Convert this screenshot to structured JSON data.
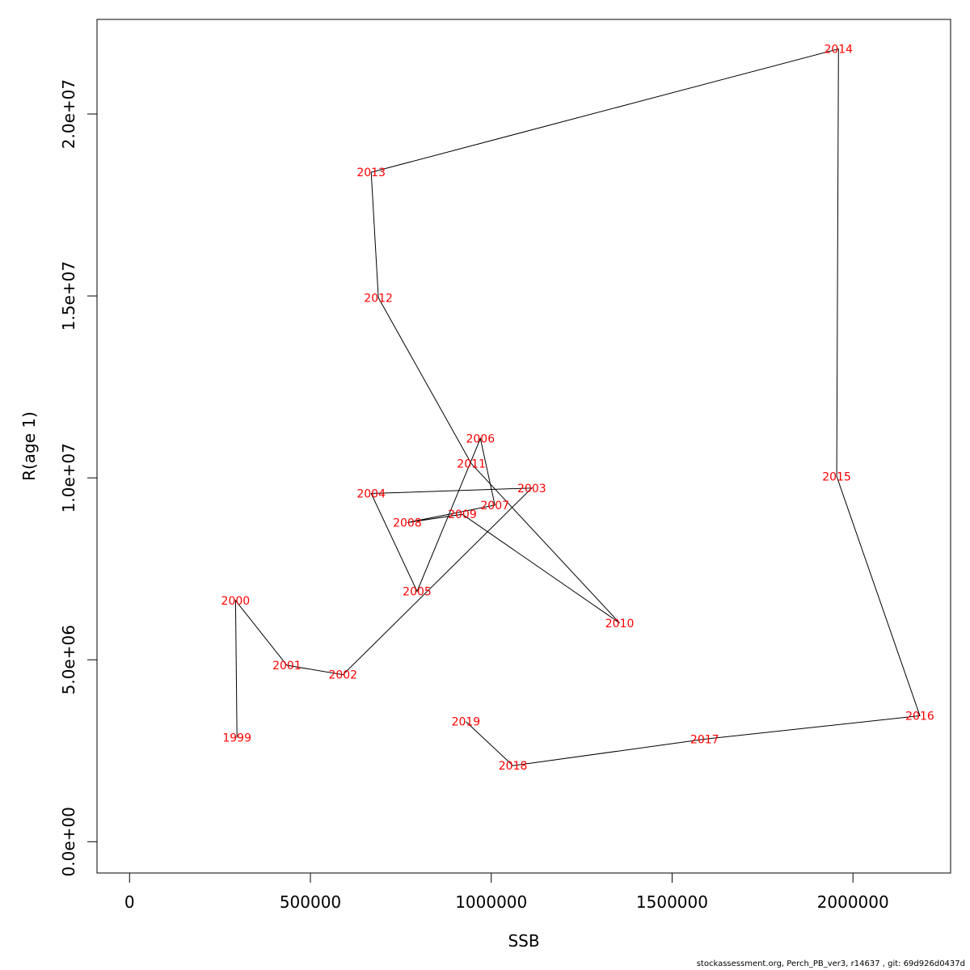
{
  "chart_data": {
    "type": "line",
    "xlabel": "SSB",
    "ylabel": "R(age 1)",
    "xlim": [
      -90000,
      2270000
    ],
    "ylim": [
      -860000,
      22600000
    ],
    "xticks": [
      0,
      500000,
      1000000,
      1500000,
      2000000
    ],
    "xtick_labels": [
      "0",
      "500000",
      "1000000",
      "1500000",
      "2000000"
    ],
    "yticks": [
      0,
      5000000,
      10000000,
      15000000,
      20000000
    ],
    "ytick_labels": [
      "0.0e+00",
      "5.0e+06",
      "1.0e+07",
      "1.5e+07",
      "2.0e+07"
    ],
    "grid": false,
    "line_color": "#000000",
    "label_color": "#ff0000",
    "points": [
      {
        "year": "1999",
        "x": 297000,
        "y": 2860000
      },
      {
        "year": "2000",
        "x": 293000,
        "y": 6630000
      },
      {
        "year": "2001",
        "x": 435000,
        "y": 4850000
      },
      {
        "year": "2002",
        "x": 590000,
        "y": 4590000
      },
      {
        "year": "2003",
        "x": 1112000,
        "y": 9720000
      },
      {
        "year": "2004",
        "x": 668000,
        "y": 9570000
      },
      {
        "year": "2005",
        "x": 795000,
        "y": 6880000
      },
      {
        "year": "2006",
        "x": 970000,
        "y": 11080000
      },
      {
        "year": "2007",
        "x": 1010000,
        "y": 9250000
      },
      {
        "year": "2008",
        "x": 768000,
        "y": 8770000
      },
      {
        "year": "2009",
        "x": 920000,
        "y": 9000000
      },
      {
        "year": "2010",
        "x": 1355000,
        "y": 6010000
      },
      {
        "year": "2011",
        "x": 945000,
        "y": 10390000
      },
      {
        "year": "2012",
        "x": 688000,
        "y": 14950000
      },
      {
        "year": "2013",
        "x": 668000,
        "y": 18400000
      },
      {
        "year": "2014",
        "x": 1960000,
        "y": 21790000
      },
      {
        "year": "2015",
        "x": 1955000,
        "y": 10040000
      },
      {
        "year": "2016",
        "x": 2185000,
        "y": 3460000
      },
      {
        "year": "2017",
        "x": 1590000,
        "y": 2820000
      },
      {
        "year": "2018",
        "x": 1060000,
        "y": 2090000
      },
      {
        "year": "2019",
        "x": 930000,
        "y": 3300000
      }
    ]
  },
  "footer": "stockassessment.org, Perch_PB_ver3, r14637 , git: 69d926d0437d"
}
